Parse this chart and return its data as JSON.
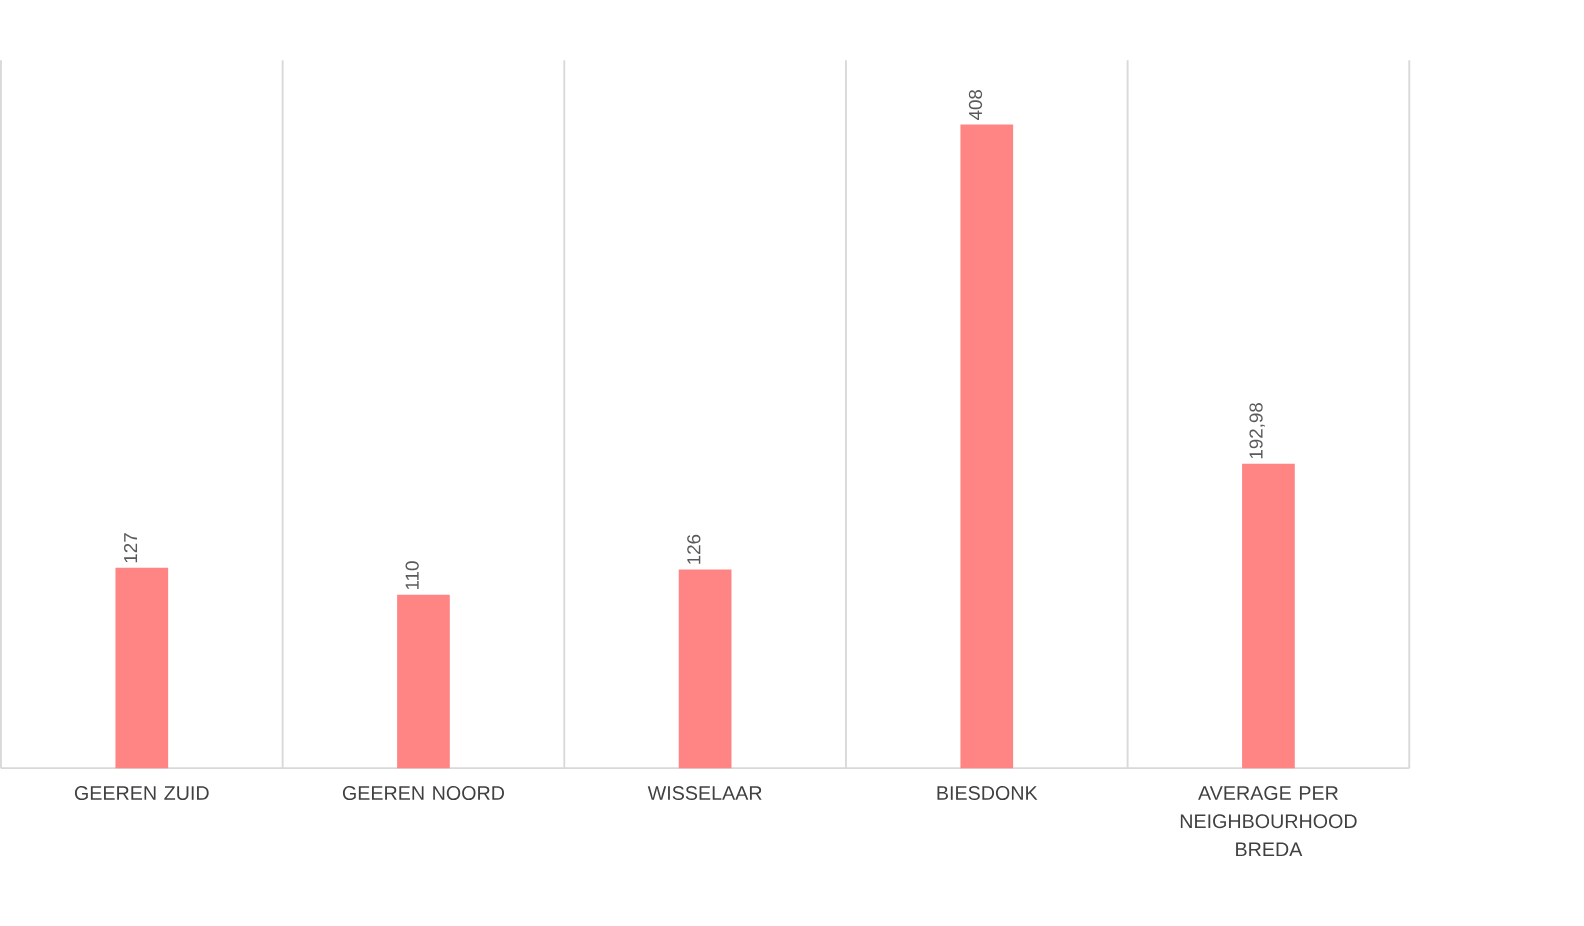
{
  "chart_data": {
    "type": "bar",
    "categories": [
      "GEEREN ZUID",
      "GEEREN NOORD",
      "WISSELAAR",
      "BIESDONK",
      "AVERAGE PER NEIGHBOURHOOD BREDA"
    ],
    "values": [
      127,
      110,
      126,
      408,
      192.98
    ],
    "value_labels": [
      "127",
      "110",
      "126",
      "408",
      "192,98"
    ],
    "color": "#ff8585",
    "grid": "x"
  }
}
